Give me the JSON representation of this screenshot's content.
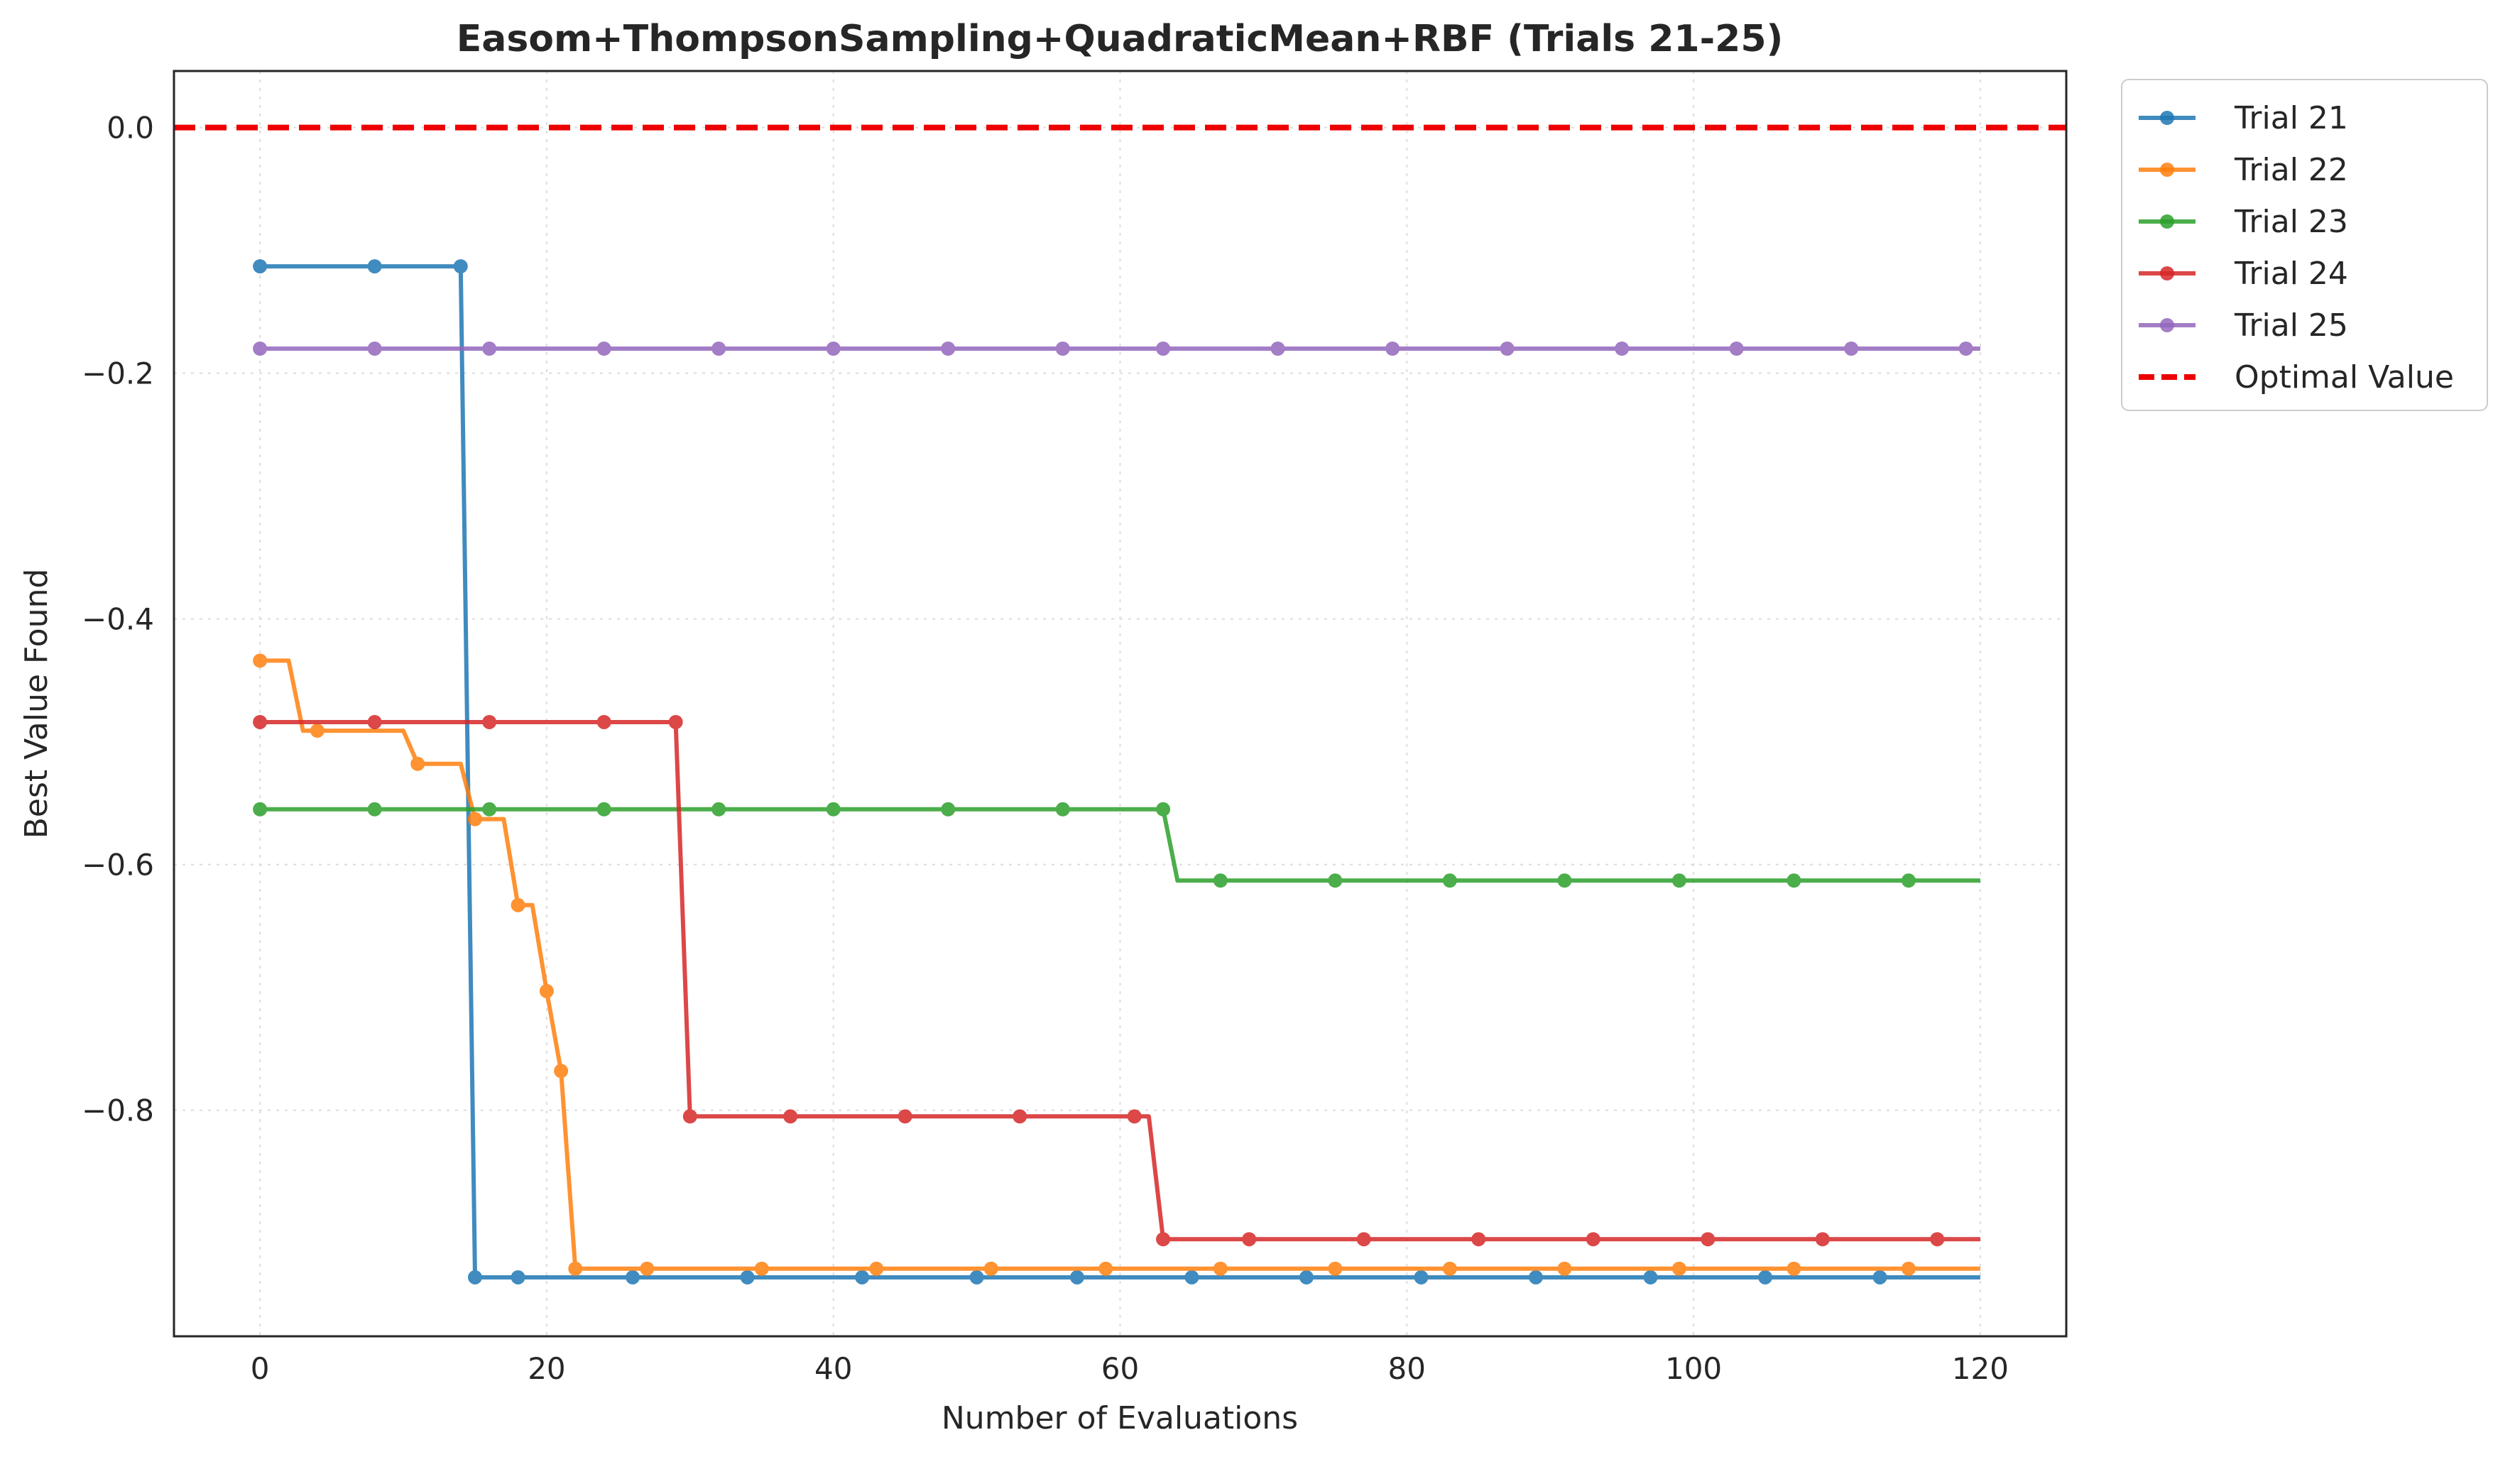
{
  "chart_data": {
    "type": "line",
    "title": "Easom+ThompsonSampling+QuadraticMean+RBF (Trials 21-25)",
    "xlabel": "Number of Evaluations",
    "ylabel": "Best Value Found",
    "xlim": [
      -6,
      126
    ],
    "ylim": [
      -0.984,
      0.046
    ],
    "x_ticks": [
      0,
      20,
      40,
      60,
      80,
      100,
      120
    ],
    "x_tick_labels": [
      "0",
      "20",
      "40",
      "60",
      "80",
      "100",
      "120"
    ],
    "y_ticks": [
      0.0,
      -0.2,
      -0.4,
      -0.6,
      -0.8
    ],
    "y_tick_labels": [
      "0.0",
      "−0.2",
      "−0.4",
      "−0.6",
      "−0.8"
    ],
    "grid": true,
    "legend_position": "outside-top-right",
    "series": [
      {
        "name": "Trial 21",
        "color": "#1f77b4",
        "steps": [
          [
            0,
            -0.113
          ],
          [
            14,
            -0.113
          ],
          [
            15,
            -0.936
          ],
          [
            120,
            -0.936
          ]
        ],
        "markers_x": [
          0,
          8,
          14,
          15,
          18,
          26,
          34,
          42,
          50,
          57,
          65,
          73,
          81,
          89,
          97,
          105,
          113
        ]
      },
      {
        "name": "Trial 22",
        "color": "#ff7f0e",
        "steps": [
          [
            0,
            -0.434
          ],
          [
            2,
            -0.434
          ],
          [
            3,
            -0.491
          ],
          [
            10,
            -0.491
          ],
          [
            11,
            -0.518
          ],
          [
            14,
            -0.518
          ],
          [
            15,
            -0.563
          ],
          [
            17,
            -0.563
          ],
          [
            18,
            -0.633
          ],
          [
            19,
            -0.633
          ],
          [
            20,
            -0.703
          ],
          [
            21,
            -0.768
          ],
          [
            22,
            -0.929
          ],
          [
            120,
            -0.929
          ]
        ],
        "markers_x": [
          0,
          4,
          11,
          15,
          18,
          20,
          21,
          22,
          27,
          35,
          43,
          51,
          59,
          67,
          75,
          83,
          91,
          99,
          107,
          115
        ]
      },
      {
        "name": "Trial 23",
        "color": "#2ca02c",
        "steps": [
          [
            0,
            -0.555
          ],
          [
            63,
            -0.555
          ],
          [
            64,
            -0.613
          ],
          [
            120,
            -0.613
          ]
        ],
        "markers_x": [
          0,
          8,
          16,
          24,
          32,
          40,
          48,
          56,
          63,
          67,
          75,
          83,
          91,
          99,
          107,
          115
        ]
      },
      {
        "name": "Trial 24",
        "color": "#d62728",
        "steps": [
          [
            0,
            -0.484
          ],
          [
            29,
            -0.484
          ],
          [
            30,
            -0.805
          ],
          [
            62,
            -0.805
          ],
          [
            63,
            -0.905
          ],
          [
            120,
            -0.905
          ]
        ],
        "markers_x": [
          0,
          8,
          16,
          24,
          29,
          30,
          37,
          45,
          53,
          61,
          63,
          69,
          77,
          85,
          93,
          101,
          109,
          117
        ]
      },
      {
        "name": "Trial 25",
        "color": "#9467bd",
        "steps": [
          [
            0,
            -0.18
          ],
          [
            120,
            -0.18
          ]
        ],
        "markers_x": [
          0,
          8,
          16,
          24,
          32,
          40,
          48,
          56,
          63,
          71,
          79,
          87,
          95,
          103,
          111,
          119
        ]
      }
    ],
    "reference_line": {
      "name": "Optimal Value",
      "y": 0.0,
      "color": "#ee0000",
      "style": "dashed"
    }
  }
}
